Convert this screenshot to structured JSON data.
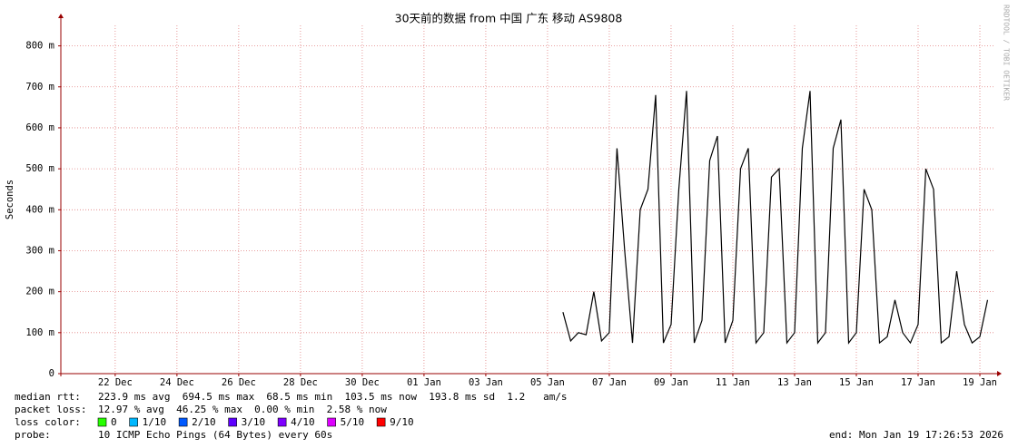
{
  "chart_data": {
    "type": "line",
    "title": "30天前的数据 from  中国 广东 移动 AS9808",
    "y_label": "Seconds",
    "side_text": "RRDTOOL / TOBI OETIKER",
    "xlim": [
      -1.76,
      28.47
    ],
    "xticks": [
      {
        "value": 0,
        "label": "22 Dec"
      },
      {
        "value": 2,
        "label": "24 Dec"
      },
      {
        "value": 4,
        "label": "26 Dec"
      },
      {
        "value": 6,
        "label": "28 Dec"
      },
      {
        "value": 8,
        "label": "30 Dec"
      },
      {
        "value": 10,
        "label": "01 Jan"
      },
      {
        "value": 12,
        "label": "03 Jan"
      },
      {
        "value": 14,
        "label": "05 Jan"
      },
      {
        "value": 16,
        "label": "07 Jan"
      },
      {
        "value": 18,
        "label": "09 Jan"
      },
      {
        "value": 20,
        "label": "11 Jan"
      },
      {
        "value": 22,
        "label": "13 Jan"
      },
      {
        "value": 24,
        "label": "15 Jan"
      },
      {
        "value": 26,
        "label": "17 Jan"
      },
      {
        "value": 28,
        "label": "19 Jan"
      }
    ],
    "ylim": [
      0,
      0.85
    ],
    "yticks": [
      0,
      {
        "value": 0.1,
        "label": "100 m"
      },
      {
        "value": 0.2,
        "label": "200 m"
      },
      {
        "value": 0.3,
        "label": "300 m"
      },
      {
        "value": 0.4,
        "label": "400 m"
      },
      {
        "value": 0.5,
        "label": "500 m"
      },
      {
        "value": 0.6,
        "label": "600 m"
      },
      {
        "value": 0.7,
        "label": "700 m"
      },
      {
        "value": 0.8,
        "label": "800 m"
      }
    ],
    "grid": true,
    "x": [
      14.5,
      14.75,
      15,
      15.25,
      15.5,
      15.75,
      16,
      16.25,
      16.5,
      16.75,
      17,
      17.25,
      17.5,
      17.75,
      18,
      18.25,
      18.5,
      18.75,
      19,
      19.25,
      19.5,
      19.75,
      20,
      20.25,
      20.5,
      20.75,
      21,
      21.25,
      21.5,
      21.75,
      22,
      22.25,
      22.5,
      22.75,
      23,
      23.25,
      23.5,
      23.75,
      24,
      24.25,
      24.5,
      24.75,
      25,
      25.25,
      25.5,
      25.75,
      26,
      26.25,
      26.5,
      26.75,
      27,
      27.25,
      27.5,
      27.75,
      28,
      28.25
    ],
    "series": [
      {
        "name": "median rtt:",
        "color": "#000000",
        "values": [
          0.15,
          0.08,
          0.1,
          0.095,
          0.2,
          0.08,
          0.1,
          0.55,
          0.3,
          0.075,
          0.4,
          0.45,
          0.68,
          0.075,
          0.12,
          0.45,
          0.69,
          0.075,
          0.13,
          0.52,
          0.58,
          0.075,
          0.13,
          0.5,
          0.55,
          0.075,
          0.1,
          0.48,
          0.5,
          0.075,
          0.1,
          0.55,
          0.69,
          0.075,
          0.1,
          0.55,
          0.62,
          0.075,
          0.1,
          0.45,
          0.4,
          0.075,
          0.09,
          0.18,
          0.1,
          0.075,
          0.12,
          0.5,
          0.45,
          0.075,
          0.09,
          0.25,
          0.12,
          0.075,
          0.09,
          0.18
        ]
      }
    ],
    "rtt_stats": "223.9 ms avg  694.5 ms max  68.5 ms min  103.5 ms now  193.8 ms sd  1.2   am/s",
    "loss_label": "packet loss:",
    "loss_stats": "12.97 % avg  46.25 % max  0.00 % min  2.58 % now",
    "loss_color_label": "loss color:",
    "loss_colors": [
      {
        "label": "0",
        "color": "#26ff00"
      },
      {
        "label": "1/10",
        "color": "#00b8ff"
      },
      {
        "label": "2/10",
        "color": "#0059ff"
      },
      {
        "label": "3/10",
        "color": "#5e00ff"
      },
      {
        "label": "4/10",
        "color": "#7e00ff"
      },
      {
        "label": "5/10",
        "color": "#dd00ff"
      },
      {
        "label": "9/10",
        "color": "#ff0000"
      }
    ],
    "probe_label": "probe:",
    "probe_text": "10 ICMP Echo Pings (64 Bytes) every 60s",
    "end_text": "end: Mon Jan 19 17:26:53 2026"
  }
}
